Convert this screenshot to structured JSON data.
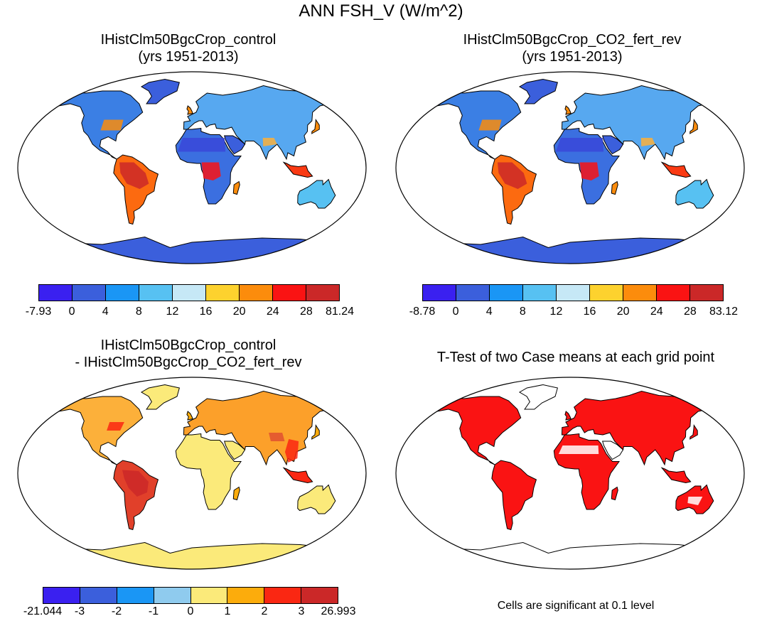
{
  "figure_title": "ANN FSH_V (W/m^2)",
  "panels": [
    {
      "title_lines": [
        "IHistClm50BgcCrop_control",
        "(yrs 1951-2013)"
      ],
      "scheme": "abs",
      "colorbar": {
        "colors": [
          "#3a20f0",
          "#3b5fdc",
          "#1a96f5",
          "#57c1f2",
          "#c6e8f6",
          "#fdd22e",
          "#fc8c0c",
          "#fa1313",
          "#cb2828"
        ],
        "labels": [
          "-7.93",
          "0",
          "4",
          "8",
          "12",
          "16",
          "20",
          "24",
          "28",
          "81.24"
        ]
      }
    },
    {
      "title_lines": [
        "IHistClm50BgcCrop_CO2_fert_rev",
        "(yrs 1951-2013)"
      ],
      "scheme": "abs",
      "colorbar": {
        "colors": [
          "#3a20f0",
          "#3b5fdc",
          "#1a96f5",
          "#57c1f2",
          "#c6e8f6",
          "#fdd22e",
          "#fc8c0c",
          "#fa1313",
          "#cb2828"
        ],
        "labels": [
          "-8.78",
          "0",
          "4",
          "8",
          "12",
          "16",
          "20",
          "24",
          "28",
          "83.12"
        ]
      }
    },
    {
      "title_lines": [
        "IHistClm50BgcCrop_control",
        "- IHistClm50BgcCrop_CO2_fert_rev"
      ],
      "scheme": "diff",
      "colorbar": {
        "colors": [
          "#3a20f0",
          "#3b5fdc",
          "#1a96f5",
          "#8fcbee",
          "#fbea7a",
          "#fcac0c",
          "#fa2712",
          "#cb2828"
        ],
        "labels": [
          "-21.044",
          "-3",
          "-2",
          "-1",
          "0",
          "1",
          "2",
          "3",
          "26.993"
        ]
      }
    },
    {
      "title_lines": [
        "T-Test of two Case means at each grid point"
      ],
      "scheme": "ttest",
      "note": "Cells are significant at 0.1 level"
    }
  ]
}
